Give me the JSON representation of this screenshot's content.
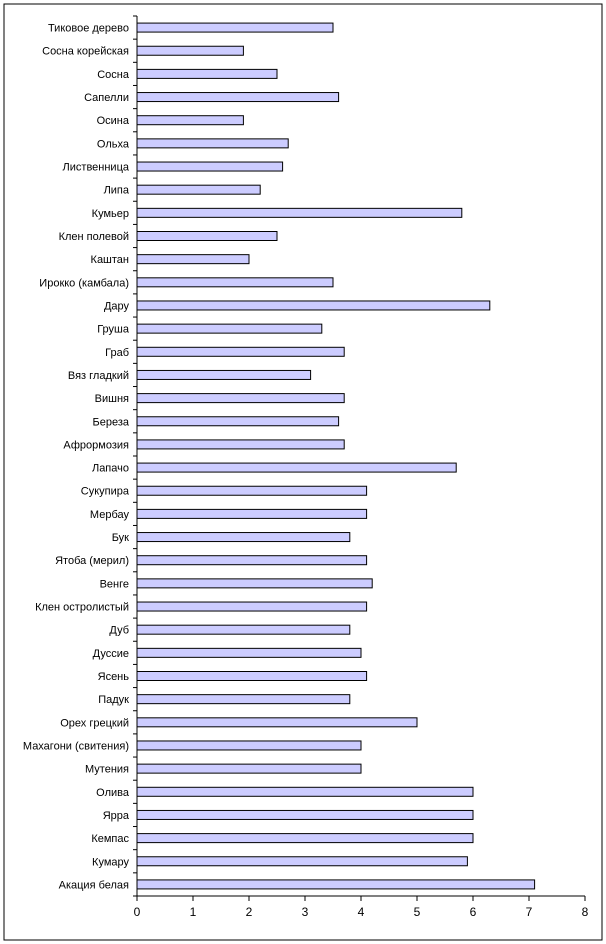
{
  "chart_data": {
    "type": "bar",
    "orientation": "horizontal",
    "title": "",
    "xlabel": "",
    "ylabel": "",
    "xlim": [
      0,
      8
    ],
    "x_ticks": [
      "0",
      "1",
      "2",
      "3",
      "4",
      "5",
      "6",
      "7",
      "8"
    ],
    "grid": false,
    "legend": "none",
    "bar_color": "#ccccff",
    "bar_edge_color": "#000000",
    "categories": [
      "Тиковое дерево",
      "Сосна корейская",
      "Сосна",
      "Сапелли",
      "Осина",
      "Ольха",
      "Лиственница",
      "Липа",
      "Кумьер",
      "Клен полевой",
      "Каштан",
      "Ирокко (камбала)",
      "Дару",
      "Груша",
      "Граб",
      "Вяз гладкий",
      "Вишня",
      "Береза",
      "Афрормозия",
      "Лапачо",
      "Сукупира",
      "Мербау",
      "Бук",
      "Ятоба (мерил)",
      "Венге",
      "Клен остролистый",
      "Дуб",
      "Дуссие",
      "Ясень",
      "Падук",
      "Орех грецкий",
      "Махагони (свитения)",
      "Мутения",
      "Олива",
      "Ярра",
      "Кемпас",
      "Кумару",
      "Акация белая"
    ],
    "values": [
      3.5,
      1.9,
      2.5,
      3.6,
      1.9,
      2.7,
      2.6,
      2.2,
      5.8,
      2.5,
      2.0,
      3.5,
      6.3,
      3.3,
      3.7,
      3.1,
      3.7,
      3.6,
      3.7,
      5.7,
      4.1,
      4.1,
      3.8,
      4.1,
      4.2,
      4.1,
      3.8,
      4.0,
      4.1,
      3.8,
      5.0,
      4.0,
      4.0,
      6.0,
      6.0,
      6.0,
      5.9,
      7.1
    ]
  }
}
